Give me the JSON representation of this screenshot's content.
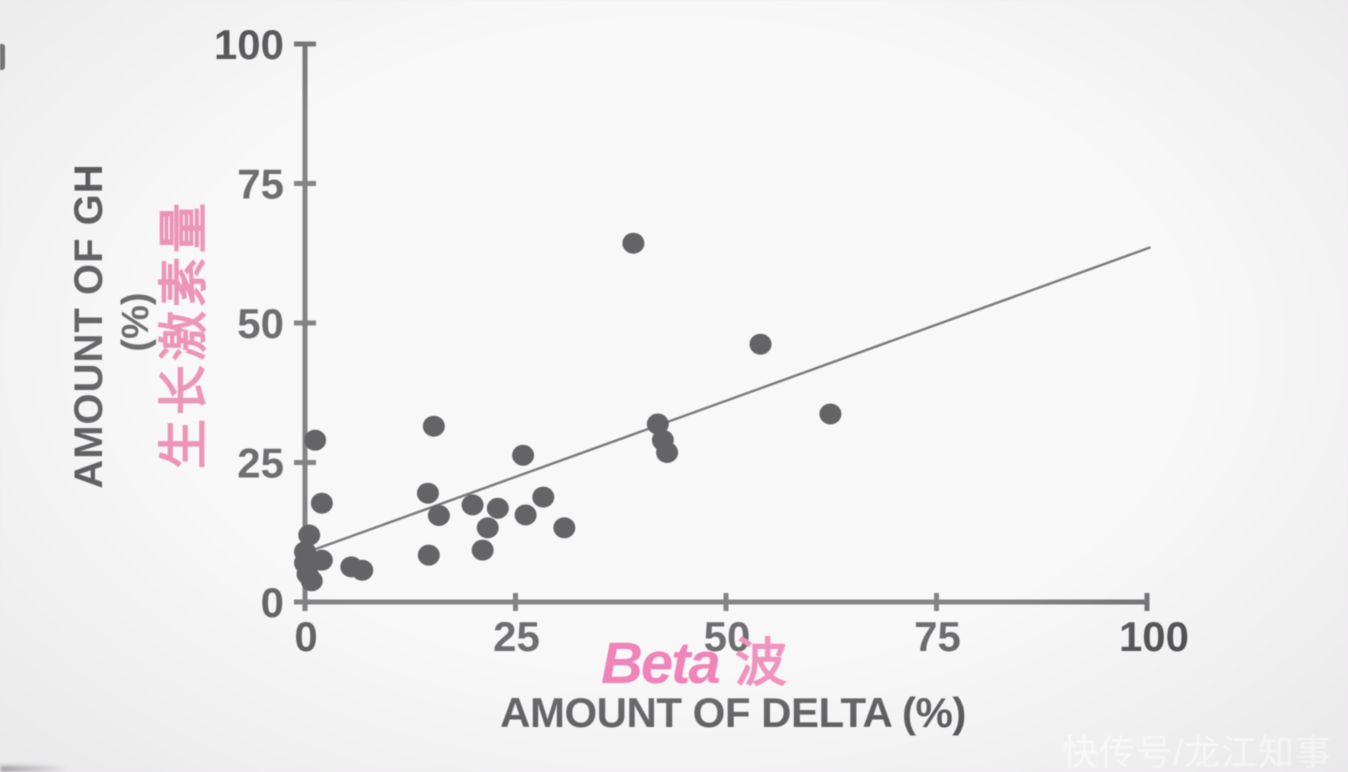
{
  "chart_data": {
    "type": "scatter",
    "title": "",
    "xlabel": "AMOUNT OF DELTA (%)",
    "ylabel": "AMOUNT OF GH (%)",
    "ylabel_line1": "AMOUNT OF GH",
    "ylabel_line2": "(%)",
    "ylabel_chinese": "生长激素量",
    "xlabel_overlay_latin": "Beta",
    "xlabel_overlay_chinese": "波",
    "xlim": [
      0,
      100
    ],
    "ylim": [
      0,
      100
    ],
    "x_ticks": [
      0,
      25,
      50,
      75,
      100
    ],
    "y_ticks": [
      0,
      25,
      50,
      75,
      100
    ],
    "grid": false,
    "legend_position": "none",
    "points": [
      [
        0.5,
        12.0
      ],
      [
        0.0,
        9.0
      ],
      [
        0.0,
        7.0
      ],
      [
        2.0,
        7.5
      ],
      [
        0.3,
        5.0
      ],
      [
        0.8,
        3.8
      ],
      [
        5.5,
        6.3
      ],
      [
        6.8,
        5.7
      ],
      [
        1.2,
        29.0
      ],
      [
        2.0,
        17.7
      ],
      [
        15.3,
        31.5
      ],
      [
        14.6,
        19.5
      ],
      [
        15.9,
        15.5
      ],
      [
        14.7,
        8.4
      ],
      [
        19.9,
        17.4
      ],
      [
        21.1,
        9.3
      ],
      [
        21.7,
        13.3
      ],
      [
        22.9,
        16.8
      ],
      [
        25.9,
        26.3
      ],
      [
        26.2,
        15.6
      ],
      [
        28.3,
        18.8
      ],
      [
        30.8,
        13.3
      ],
      [
        39.0,
        64.3
      ],
      [
        41.9,
        31.9
      ],
      [
        42.5,
        29.0
      ],
      [
        43.0,
        26.8
      ],
      [
        54.1,
        46.2
      ],
      [
        62.4,
        33.7
      ]
    ],
    "trend_line": {
      "x1": 0.4,
      "y1": 9.0,
      "x2": 100.3,
      "y2": 63.5
    }
  },
  "watermark": "快传号/龙江知事",
  "colors": {
    "background": "#f5f4f5",
    "ink": "#201f22",
    "axis": "#434144",
    "point": "#121114",
    "trend": "#323134",
    "pink_accent": "#e84192",
    "pink_soft": "#e25c91",
    "watermark": "#ffffff"
  }
}
